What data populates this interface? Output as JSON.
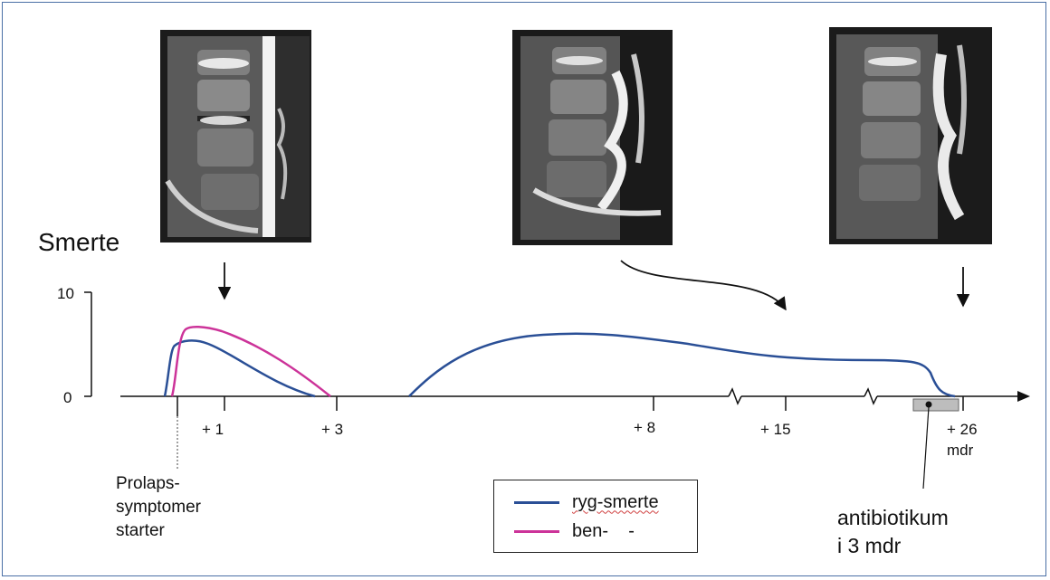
{
  "y_axis_label": "Smerte",
  "y_ticks": [
    "10",
    "0"
  ],
  "x_ticks": [
    "+ 1",
    "+ 3",
    "+ 8",
    "+ 15",
    "+ 26"
  ],
  "x_unit": "mdr",
  "annotations": {
    "onset": "Prolaps-\nsymptomer\nstarter",
    "antibiotic": "antibiotikum\ni 3 mdr"
  },
  "legend": {
    "items": [
      {
        "label": "ryg-smerte",
        "color": "#2a4f96"
      },
      {
        "label": "ben-    -",
        "color": "#cc3399"
      }
    ]
  },
  "colors": {
    "back_pain": "#2a4f96",
    "leg_pain": "#cc3399",
    "axis": "#111111",
    "antibiotic_bar": "#bdbdbd"
  },
  "images": [
    {
      "name": "mri-scan-1",
      "depicts": "sagittal lumbar spine MRI"
    },
    {
      "name": "mri-scan-2",
      "depicts": "sagittal lumbar spine MRI"
    },
    {
      "name": "mri-scan-3",
      "depicts": "sagittal lumbar spine MRI"
    }
  ]
}
